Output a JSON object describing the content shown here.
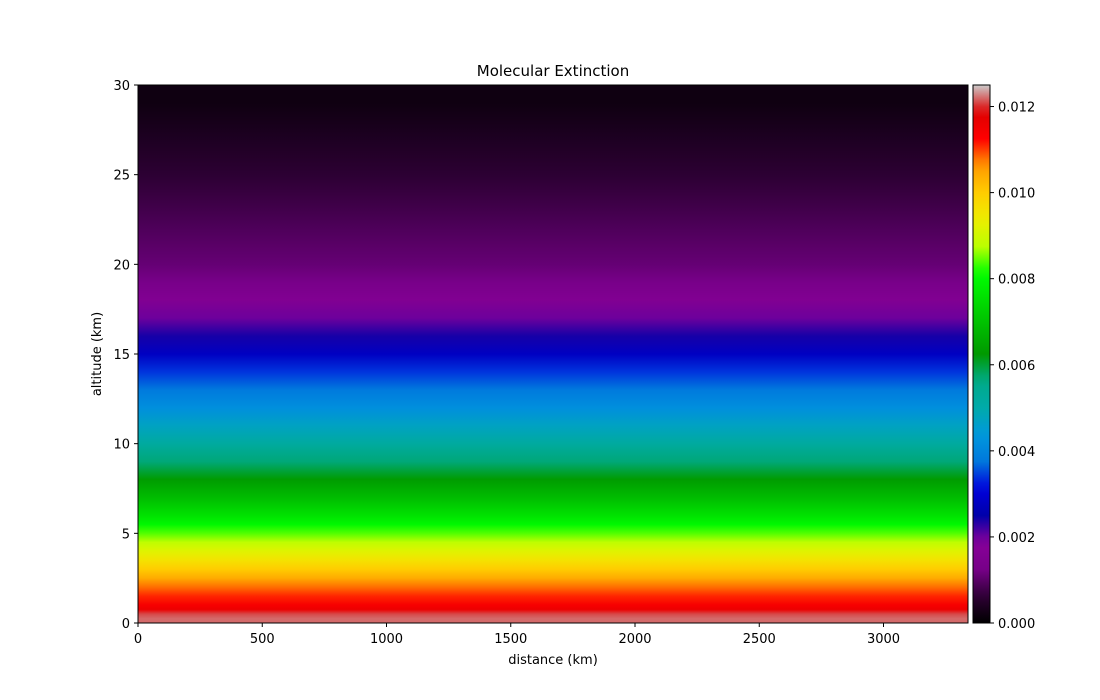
{
  "chart_data": {
    "type": "heatmap",
    "title": "Molecular Extinction",
    "xlabel": "distance (km)",
    "ylabel": "altitude (km)",
    "xlim": [
      0,
      3340
    ],
    "ylim": [
      0,
      30
    ],
    "x_ticks": [
      0,
      500,
      1000,
      1500,
      2000,
      2500,
      3000
    ],
    "y_ticks": [
      0,
      5,
      10,
      15,
      20,
      25,
      30
    ],
    "colorbar": {
      "range": [
        0,
        0.0125
      ],
      "ticks": [
        "0.000",
        "0.002",
        "0.004",
        "0.006",
        "0.008",
        "0.010",
        "0.012"
      ],
      "tick_values": [
        0,
        0.002,
        0.004,
        0.006,
        0.008,
        0.01,
        0.012
      ],
      "colormap": "nipy_spectral"
    },
    "profile": {
      "description_altitude_km": [
        0,
        0.25,
        0.5,
        0.75,
        1,
        1.5,
        2,
        2.5,
        3,
        3.5,
        4,
        4.5,
        5,
        5.5,
        6,
        7,
        8,
        9,
        10,
        11,
        12,
        13,
        14,
        15,
        16,
        17,
        18,
        19,
        20,
        21,
        22,
        23,
        24,
        25,
        26,
        27,
        28,
        29,
        30
      ],
      "extinction": [
        0.0122,
        0.0122,
        0.0121,
        0.0116,
        0.0114,
        0.0111,
        0.0108,
        0.0104,
        0.01,
        0.0096,
        0.0092,
        0.0088,
        0.0084,
        0.008,
        0.0076,
        0.0069,
        0.0063,
        0.0057,
        0.0052,
        0.0047,
        0.0042,
        0.0038,
        0.0034,
        0.0028,
        0.0024,
        0.002,
        0.0016,
        0.0013,
        0.0011,
        0.001,
        0.0009,
        0.0008,
        0.0007,
        0.0006,
        0.0005,
        0.0004,
        0.0003,
        0.0002,
        0.0002
      ]
    }
  }
}
